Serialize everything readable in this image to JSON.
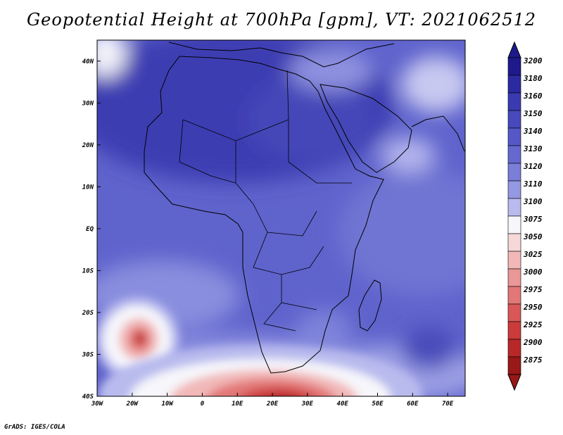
{
  "title": "Geopotential Height at 700hPa [gpm], VT: 2021062512",
  "credit": "GrADS: IGES/COLA",
  "lat_labels": [
    "40N",
    "30N",
    "20N",
    "10N",
    "EQ",
    "10S",
    "20S",
    "30S",
    "40S"
  ],
  "lon_labels": [
    "30W",
    "20W",
    "10W",
    "0",
    "10E",
    "20E",
    "30E",
    "40E",
    "50E",
    "60E",
    "70E"
  ],
  "colorbar": {
    "labels": [
      "3200",
      "3180",
      "3160",
      "3150",
      "3140",
      "3130",
      "3120",
      "3110",
      "3100",
      "3075",
      "3050",
      "3025",
      "3000",
      "2975",
      "2950",
      "2925",
      "2900",
      "2875"
    ],
    "colors": [
      "#1e1a8c",
      "#2b2aa0",
      "#3a3bb0",
      "#4749bc",
      "#5558c6",
      "#6569cf",
      "#7a7ed8",
      "#9598e2",
      "#b9bbee",
      "#f6f6fb",
      "#f7d8d8",
      "#f2b8b8",
      "#ea9797",
      "#e27777",
      "#d95757",
      "#cc3b3b",
      "#b82828",
      "#991818"
    ]
  },
  "map_extent": {
    "lon": [
      -30,
      75
    ],
    "lat": [
      -40,
      45
    ]
  }
}
